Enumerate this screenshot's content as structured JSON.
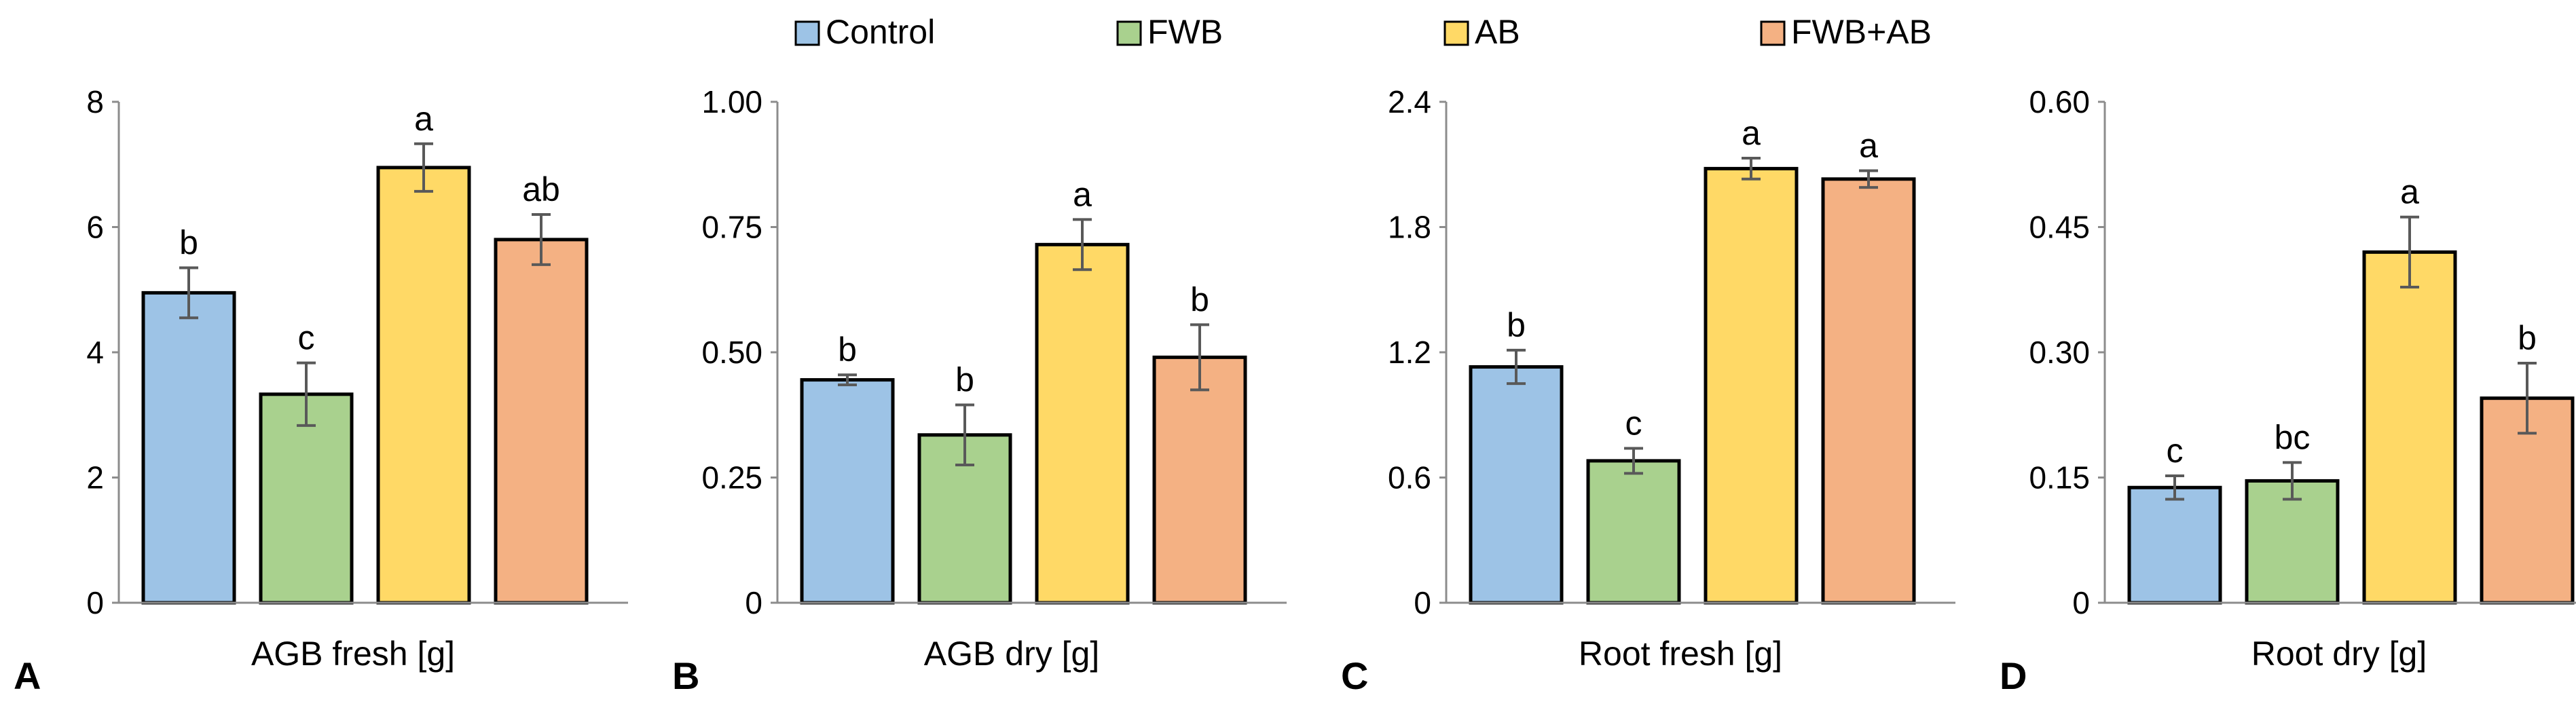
{
  "legend": {
    "entries": [
      {
        "label": "Control",
        "color": "#9DC3E6"
      },
      {
        "label": "FWB",
        "color": "#A9D18E"
      },
      {
        "label": "AB",
        "color": "#FFD966"
      },
      {
        "label": "FWB+AB",
        "color": "#F4B183"
      }
    ]
  },
  "chart_data": [
    {
      "type": "bar",
      "panel": "A",
      "xlabel": "AGB fresh [g]",
      "ylabel": "",
      "ylim": [
        0,
        8
      ],
      "yticks": [
        "0",
        "2",
        "4",
        "6",
        "8"
      ],
      "categories": [
        "Control",
        "FWB",
        "AB",
        "FWB+AB"
      ],
      "values": [
        4.95,
        3.33,
        6.95,
        5.8
      ],
      "errors": [
        0.4,
        0.5,
        0.38,
        0.4
      ],
      "letters": [
        "b",
        "c",
        "a",
        "ab"
      ]
    },
    {
      "type": "bar",
      "panel": "B",
      "xlabel": "AGB dry [g]",
      "ylabel": "",
      "ylim": [
        0,
        1.0
      ],
      "yticks": [
        "0",
        "0.25",
        "0.50",
        "0.75",
        "1.00"
      ],
      "categories": [
        "Control",
        "FWB",
        "AB",
        "FWB+AB"
      ],
      "values": [
        0.445,
        0.335,
        0.715,
        0.49
      ],
      "errors": [
        0.01,
        0.06,
        0.05,
        0.065
      ],
      "letters": [
        "b",
        "b",
        "a",
        "b"
      ]
    },
    {
      "type": "bar",
      "panel": "C",
      "xlabel": "Root fresh [g]",
      "ylabel": "",
      "ylim": [
        0,
        2.4
      ],
      "yticks": [
        "0",
        "0.6",
        "1.2",
        "1.8",
        "2.4"
      ],
      "categories": [
        "Control",
        "FWB",
        "AB",
        "FWB+AB"
      ],
      "values": [
        1.13,
        0.68,
        2.08,
        2.03
      ],
      "errors": [
        0.08,
        0.06,
        0.05,
        0.04
      ],
      "letters": [
        "b",
        "c",
        "a",
        "a"
      ]
    },
    {
      "type": "bar",
      "panel": "D",
      "xlabel": "Root dry [g]",
      "ylabel": "",
      "ylim": [
        0,
        0.6
      ],
      "yticks": [
        "0",
        "0.15",
        "0.30",
        "0.45",
        "0.60"
      ],
      "categories": [
        "Control",
        "FWB",
        "AB",
        "FWB+AB"
      ],
      "values": [
        0.138,
        0.146,
        0.42,
        0.245
      ],
      "errors": [
        0.014,
        0.022,
        0.042,
        0.042
      ],
      "letters": [
        "c",
        "bc",
        "a",
        "b"
      ]
    }
  ]
}
